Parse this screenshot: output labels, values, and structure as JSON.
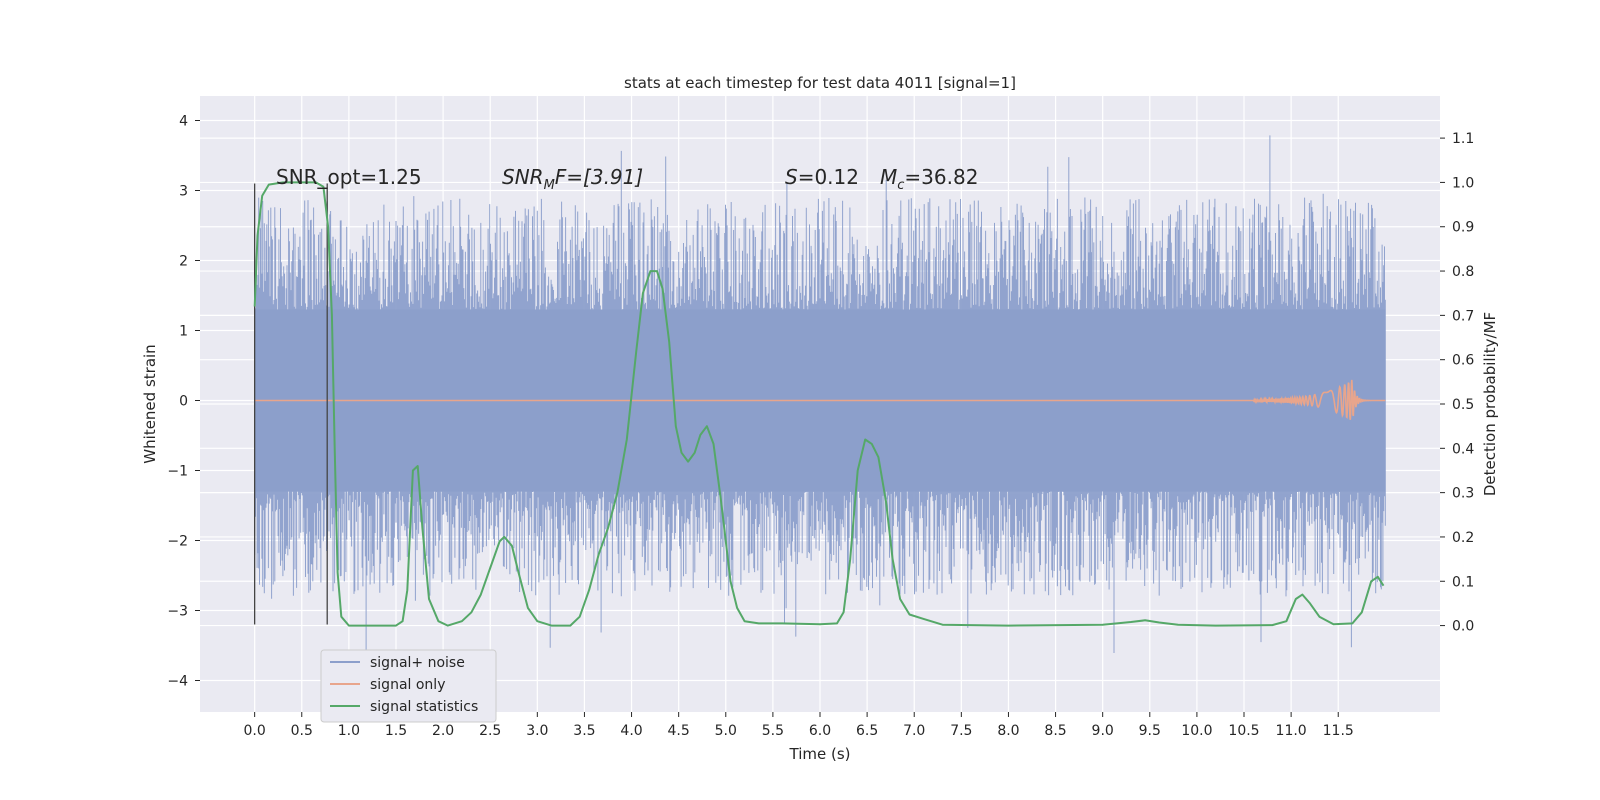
{
  "chart_data": {
    "type": "line",
    "title": "stats at each timestep for test data 4011 [signal=1]",
    "xlabel": "Time (s)",
    "ylabel_left": "Whitened strain",
    "ylabel_right": "Detection probability/MF",
    "x_range": [
      -0.58,
      12.58
    ],
    "y_left_range": [
      -4.45,
      4.35
    ],
    "y_right_range": [
      -0.195,
      1.195
    ],
    "x_ticks": [
      "0.0",
      "0.5",
      "1.0",
      "1.5",
      "2.0",
      "2.5",
      "3.0",
      "3.5",
      "4.0",
      "4.5",
      "5.0",
      "5.5",
      "6.0",
      "6.5",
      "7.0",
      "7.5",
      "8.0",
      "8.5",
      "9.0",
      "9.5",
      "10.0",
      "10.5",
      "11.0",
      "11.5"
    ],
    "y_left_ticks": [
      "−4",
      "−3",
      "−2",
      "−1",
      "0",
      "1",
      "2",
      "3",
      "4"
    ],
    "y_right_ticks": [
      "0.0",
      "0.1",
      "0.2",
      "0.3",
      "0.4",
      "0.5",
      "0.6",
      "0.7",
      "0.8",
      "0.9",
      "1.0",
      "1.1"
    ],
    "grid": true,
    "legend_position": "lower-left",
    "annotations": {
      "snr_opt": "SNR_opt=1.25",
      "snr_mf_symbol": "SNR",
      "snr_mf_sub": "M",
      "snr_mf_rest": "F=[3.91]",
      "s_symbol": "S",
      "s_rest": "=0.12",
      "mc_symbol": "M",
      "mc_sub": "c",
      "mc_rest": "=36.82"
    },
    "markers": [
      {
        "x": 0.0,
        "y": [
          -3.2,
          3.1
        ]
      },
      {
        "x": 0.77,
        "y": [
          -3.2,
          3.1
        ]
      }
    ],
    "series": [
      {
        "name": "signal+ noise",
        "color": "#8c9fcb",
        "x_range": [
          0.0,
          12.0
        ],
        "band": [
          -1.3,
          1.3
        ],
        "envelope": [
          -4.1,
          4.0
        ]
      },
      {
        "name": "signal only",
        "color": "#e8a58c",
        "chirp_peak_time": 11.65,
        "chirp_peak_amplitude": 0.3
      },
      {
        "name": "signal statistics",
        "color": "#55a868",
        "axis": "right",
        "points": [
          [
            0.0,
            0.72
          ],
          [
            0.03,
            0.88
          ],
          [
            0.08,
            0.97
          ],
          [
            0.15,
            0.995
          ],
          [
            0.3,
            1.0
          ],
          [
            0.5,
            1.0
          ],
          [
            0.65,
            1.0
          ],
          [
            0.73,
            0.99
          ],
          [
            0.78,
            0.9
          ],
          [
            0.82,
            0.7
          ],
          [
            0.85,
            0.4
          ],
          [
            0.88,
            0.12
          ],
          [
            0.92,
            0.02
          ],
          [
            1.0,
            0.0
          ],
          [
            1.5,
            0.0
          ],
          [
            1.57,
            0.01
          ],
          [
            1.62,
            0.08
          ],
          [
            1.68,
            0.35
          ],
          [
            1.73,
            0.36
          ],
          [
            1.78,
            0.22
          ],
          [
            1.85,
            0.06
          ],
          [
            1.95,
            0.01
          ],
          [
            2.05,
            0.0
          ],
          [
            2.2,
            0.01
          ],
          [
            2.3,
            0.03
          ],
          [
            2.4,
            0.07
          ],
          [
            2.5,
            0.13
          ],
          [
            2.6,
            0.19
          ],
          [
            2.65,
            0.2
          ],
          [
            2.73,
            0.18
          ],
          [
            2.8,
            0.12
          ],
          [
            2.9,
            0.04
          ],
          [
            3.0,
            0.01
          ],
          [
            3.15,
            0.0
          ],
          [
            3.35,
            0.0
          ],
          [
            3.45,
            0.02
          ],
          [
            3.55,
            0.08
          ],
          [
            3.65,
            0.16
          ],
          [
            3.75,
            0.22
          ],
          [
            3.85,
            0.3
          ],
          [
            3.95,
            0.42
          ],
          [
            4.05,
            0.62
          ],
          [
            4.12,
            0.75
          ],
          [
            4.2,
            0.8
          ],
          [
            4.27,
            0.8
          ],
          [
            4.33,
            0.76
          ],
          [
            4.4,
            0.64
          ],
          [
            4.47,
            0.45
          ],
          [
            4.53,
            0.39
          ],
          [
            4.6,
            0.37
          ],
          [
            4.67,
            0.39
          ],
          [
            4.73,
            0.43
          ],
          [
            4.8,
            0.45
          ],
          [
            4.87,
            0.41
          ],
          [
            4.95,
            0.28
          ],
          [
            5.05,
            0.1
          ],
          [
            5.12,
            0.04
          ],
          [
            5.2,
            0.01
          ],
          [
            5.35,
            0.005
          ],
          [
            5.6,
            0.005
          ],
          [
            6.0,
            0.003
          ],
          [
            6.18,
            0.005
          ],
          [
            6.25,
            0.03
          ],
          [
            6.32,
            0.15
          ],
          [
            6.4,
            0.35
          ],
          [
            6.48,
            0.42
          ],
          [
            6.55,
            0.41
          ],
          [
            6.62,
            0.38
          ],
          [
            6.7,
            0.28
          ],
          [
            6.77,
            0.15
          ],
          [
            6.85,
            0.06
          ],
          [
            6.95,
            0.025
          ],
          [
            7.1,
            0.015
          ],
          [
            7.3,
            0.002
          ],
          [
            8.0,
            0.0
          ],
          [
            9.0,
            0.002
          ],
          [
            9.3,
            0.008
          ],
          [
            9.45,
            0.012
          ],
          [
            9.6,
            0.007
          ],
          [
            9.8,
            0.002
          ],
          [
            10.2,
            0.0
          ],
          [
            10.8,
            0.001
          ],
          [
            10.95,
            0.01
          ],
          [
            11.05,
            0.06
          ],
          [
            11.12,
            0.07
          ],
          [
            11.2,
            0.05
          ],
          [
            11.3,
            0.02
          ],
          [
            11.45,
            0.003
          ],
          [
            11.65,
            0.005
          ],
          [
            11.75,
            0.03
          ],
          [
            11.85,
            0.1
          ],
          [
            11.92,
            0.11
          ],
          [
            11.98,
            0.09
          ]
        ]
      }
    ]
  }
}
